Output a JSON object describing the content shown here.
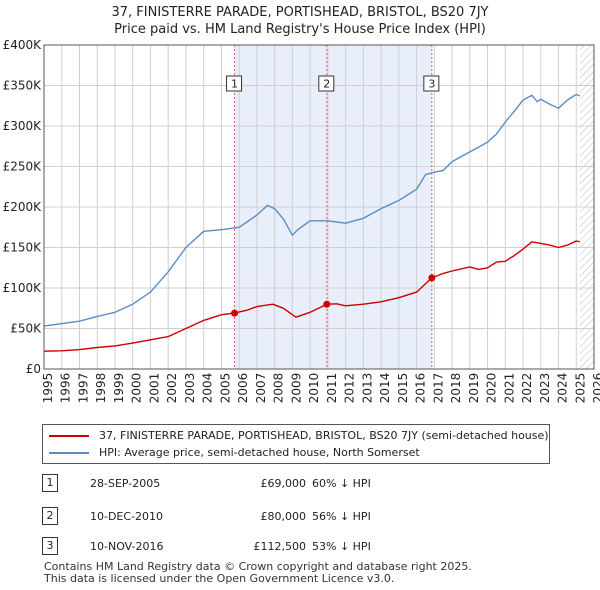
{
  "title": "37, FINISTERRE PARADE, PORTISHEAD, BRISTOL, BS20 7JY",
  "subtitle": "Price paid vs. HM Land Registry's House Price Index (HPI)",
  "chart_data": {
    "type": "line",
    "xlim": [
      1995,
      2026
    ],
    "ylim": [
      0,
      400000
    ],
    "y_ticks": [
      0,
      50000,
      100000,
      150000,
      200000,
      250000,
      300000,
      350000,
      400000
    ],
    "y_tick_labels": [
      "£0",
      "£50K",
      "£100K",
      "£150K",
      "£200K",
      "£250K",
      "£300K",
      "£350K",
      "£400K"
    ],
    "x_ticks": [
      "1995",
      "1996",
      "1997",
      "1998",
      "1999",
      "2000",
      "2001",
      "2002",
      "2003",
      "2004",
      "2005",
      "2006",
      "2007",
      "2008",
      "2009",
      "2010",
      "2011",
      "2012",
      "2013",
      "2014",
      "2015",
      "2016",
      "2017",
      "2018",
      "2019",
      "2020",
      "2021",
      "2022",
      "2023",
      "2024",
      "2025",
      "2026"
    ],
    "grid": true,
    "data_end": 2025.2,
    "series": [
      {
        "name": "37, FINISTERRE PARADE, PORTISHEAD, BRISTOL, BS20 7JY (semi-detached house)",
        "color": "#cc0000",
        "x": [
          1995,
          1996,
          1997,
          1998,
          1999,
          2000,
          2001,
          2002,
          2003,
          2004,
          2005,
          2005.74,
          2006.5,
          2007,
          2007.9,
          2008.5,
          2009.2,
          2010,
          2010.94,
          2011.5,
          2012,
          2013,
          2014,
          2015,
          2016,
          2016.86,
          2017.5,
          2018,
          2019,
          2019.5,
          2020,
          2020.5,
          2021,
          2021.5,
          2022,
          2022.5,
          2023,
          2023.5,
          2024,
          2024.5,
          2025,
          2025.2
        ],
        "y": [
          22000,
          22500,
          24000,
          26500,
          28500,
          32000,
          36000,
          40000,
          50000,
          60000,
          67000,
          69000,
          73000,
          77000,
          80000,
          75000,
          64000,
          70000,
          80000,
          80500,
          78000,
          80000,
          83000,
          88000,
          95000,
          112500,
          118000,
          121000,
          126000,
          123000,
          125000,
          132000,
          133000,
          140000,
          148000,
          157000,
          155000,
          153000,
          150000,
          153000,
          158000,
          157000
        ]
      },
      {
        "name": "HPI: Average price, semi-detached house, North Somerset",
        "color": "#5b8cc4",
        "x": [
          1995,
          1996,
          1997,
          1998,
          1999,
          2000,
          2001,
          2002,
          2003,
          2004,
          2005,
          2006,
          2007,
          2007.6,
          2008,
          2008.5,
          2009,
          2009.3,
          2010,
          2011,
          2012,
          2013,
          2014,
          2015,
          2016,
          2016.5,
          2017,
          2017.5,
          2018,
          2019,
          2019.5,
          2020,
          2020.5,
          2021,
          2021.5,
          2022,
          2022.5,
          2022.8,
          2023,
          2023.5,
          2024,
          2024.5,
          2025,
          2025.2
        ],
        "y": [
          53000,
          56000,
          59000,
          65000,
          70000,
          80000,
          95000,
          120000,
          150000,
          170000,
          172000,
          175000,
          190000,
          202000,
          198000,
          185000,
          165000,
          172000,
          183000,
          183000,
          180000,
          186000,
          198000,
          208000,
          222000,
          240000,
          243000,
          245000,
          256000,
          268000,
          274000,
          280000,
          290000,
          305000,
          318000,
          332000,
          338000,
          330000,
          333000,
          327000,
          322000,
          332000,
          339000,
          337000
        ]
      }
    ],
    "markers": [
      {
        "label": "1",
        "x": 2005.74,
        "y": 69000
      },
      {
        "label": "2",
        "x": 2010.94,
        "y": 80000
      },
      {
        "label": "3",
        "x": 2016.86,
        "y": 112500
      }
    ]
  },
  "legend": {
    "items": [
      {
        "label": "37, FINISTERRE PARADE, PORTISHEAD, BRISTOL, BS20 7JY (semi-detached house)",
        "color": "#cc0000"
      },
      {
        "label": "HPI: Average price, semi-detached house, North Somerset",
        "color": "#5b8cc4"
      }
    ]
  },
  "transactions": [
    {
      "num": "1",
      "date": "28-SEP-2005",
      "price": "£69,000",
      "hpi": "60% ↓ HPI"
    },
    {
      "num": "2",
      "date": "10-DEC-2010",
      "price": "£80,000",
      "hpi": "56% ↓ HPI"
    },
    {
      "num": "3",
      "date": "10-NOV-2016",
      "price": "£112,500",
      "hpi": "53% ↓ HPI"
    }
  ],
  "footer": {
    "line1": "Contains HM Land Registry data © Crown copyright and database right 2025.",
    "line2": "This data is licensed under the Open Government Licence v3.0."
  }
}
